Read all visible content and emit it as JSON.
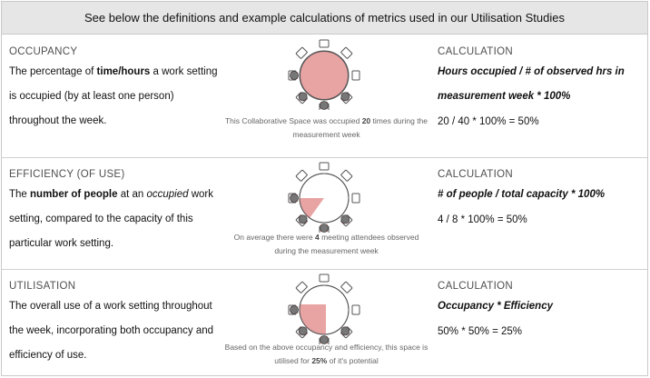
{
  "header": {
    "title": "See below the definitions and example calculations of metrics used in our Utilisation Studies"
  },
  "sections": [
    {
      "title": "OCCUPANCY",
      "desc_parts": [
        "The percentage of ",
        "time/hours",
        " a work setting is occupied (by at least one person) throughout the week."
      ],
      "caption_parts": [
        "This Collaborative Space was occupied ",
        "20",
        " times during the measurement week"
      ],
      "calc_title": "CALCULATION",
      "formula": "Hours occupied / # of observed hrs in measurement week * 100%",
      "example": "20 / 40 * 100% = 50%",
      "fill_fraction": 0.5
    },
    {
      "title": "EFFICIENCY (OF USE)",
      "desc_parts": [
        "The ",
        "number of people",
        " at an ",
        "occupied",
        " work setting, compared to the capacity of this particular work setting."
      ],
      "caption_parts": [
        "On average there were ",
        "4",
        " meeting attendees observed during the measurement week"
      ],
      "calc_title": "CALCULATION",
      "formula": "# of people / total capacity * 100%",
      "example": "4 / 8 * 100% = 50%",
      "fill_fraction": 0.5
    },
    {
      "title": "UTILISATION",
      "desc_parts": [
        "The overall use of a work setting throughout the week, incorporating both occupancy and efficiency of use."
      ],
      "caption_parts": [
        "Based on the above occupancy and efficiency, this space is utilised for ",
        "25%",
        " of it's potential"
      ],
      "calc_title": "CALCULATION",
      "formula": "Occupancy * Efficiency",
      "example": "50% * 50% = 25%",
      "fill_fraction": 0.25
    }
  ],
  "colors": {
    "fill": "#e8a3a3",
    "chair_occupied": "#d94a4a",
    "person": "#777777",
    "border": "#c9c9c9",
    "header_bg": "#e6e6e6"
  }
}
